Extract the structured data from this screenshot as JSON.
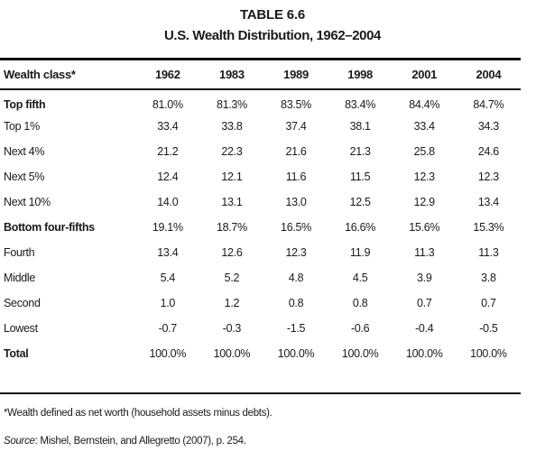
{
  "table": {
    "number": "TABLE 6.6",
    "title": "U.S. Wealth Distribution, 1962–2004",
    "header_label": "Wealth class*",
    "years": [
      "1962",
      "1983",
      "1989",
      "1998",
      "2001",
      "2004"
    ],
    "rows": [
      {
        "label": "Top fifth",
        "bold": true,
        "values": [
          "81.0%",
          "81.3%",
          "83.5%",
          "83.4%",
          "84.4%",
          "84.7%"
        ]
      },
      {
        "label": "Top 1%",
        "bold": false,
        "values": [
          "33.4",
          "33.8",
          "37.4",
          "38.1",
          "33.4",
          "34.3"
        ]
      },
      {
        "label": "Next 4%",
        "bold": false,
        "values": [
          "21.2",
          "22.3",
          "21.6",
          "21.3",
          "25.8",
          "24.6"
        ]
      },
      {
        "label": "Next 5%",
        "bold": false,
        "values": [
          "12.4",
          "12.1",
          "11.6",
          "11.5",
          "12.3",
          "12.3"
        ]
      },
      {
        "label": "Next 10%",
        "bold": false,
        "values": [
          "14.0",
          "13.1",
          "13.0",
          "12.5",
          "12.9",
          "13.4"
        ]
      },
      {
        "label": "Bottom four-fifths",
        "bold": true,
        "values": [
          "19.1%",
          "18.7%",
          "16.5%",
          "16.6%",
          "15.6%",
          "15.3%"
        ]
      },
      {
        "label": "Fourth",
        "bold": false,
        "values": [
          "13.4",
          "12.6",
          "12.3",
          "11.9",
          "11.3",
          "11.3"
        ]
      },
      {
        "label": "Middle",
        "bold": false,
        "values": [
          "5.4",
          "5.2",
          "4.8",
          "4.5",
          "3.9",
          "3.8"
        ]
      },
      {
        "label": "Second",
        "bold": false,
        "values": [
          "1.0",
          "1.2",
          "0.8",
          "0.8",
          "0.7",
          "0.7"
        ]
      },
      {
        "label": "Lowest",
        "bold": false,
        "values": [
          "-0.7",
          "-0.3",
          "-1.5",
          "-0.6",
          "-0.4",
          "-0.5"
        ]
      },
      {
        "label": "Total",
        "bold": true,
        "values": [
          "100.0%",
          "100.0%",
          "100.0%",
          "100.0%",
          "100.0%",
          "100.0%"
        ]
      }
    ],
    "footnote": "*Wealth defined as net worth (household assets minus debts).",
    "source_label": "Source",
    "source_text": ": Mishel, Bernstein, and Allegretto (2007), p. 254."
  }
}
